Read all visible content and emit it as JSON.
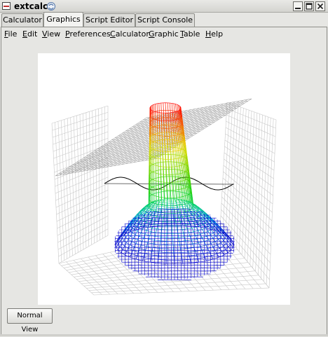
{
  "window": {
    "title": "extcalc"
  },
  "tabs": [
    {
      "label": "Calculator",
      "active": false
    },
    {
      "label": "Graphics",
      "active": true
    },
    {
      "label": "Script Editor",
      "active": false
    },
    {
      "label": "Script Console",
      "active": false
    }
  ],
  "menubar": {
    "items": [
      {
        "label": "File",
        "mnemonic": "F"
      },
      {
        "label": "Edit",
        "mnemonic": "E"
      },
      {
        "label": "View",
        "mnemonic": "V"
      },
      {
        "label": "Preferences",
        "mnemonic": "P"
      },
      {
        "label": "Calculator",
        "mnemonic": "C"
      },
      {
        "label": "Graphic",
        "mnemonic": "G"
      },
      {
        "label": "Table",
        "mnemonic": "T"
      },
      {
        "label": "Help",
        "mnemonic": "H"
      }
    ]
  },
  "actions": {
    "normal_view_label": "Normal View"
  },
  "icons": {
    "app": "calculator-app-icon",
    "window_menu": "window-menu-icon",
    "minimize": "minimize-icon",
    "maximize": "maximize-icon",
    "close": "close-icon"
  },
  "colors": {
    "plane": "#8a8a8a",
    "sine": "#000000",
    "surface_top": "#ff0000",
    "surface_mid": "#00cc00",
    "surface_bottom": "#0000cc",
    "grid": "#c8c8c8"
  }
}
